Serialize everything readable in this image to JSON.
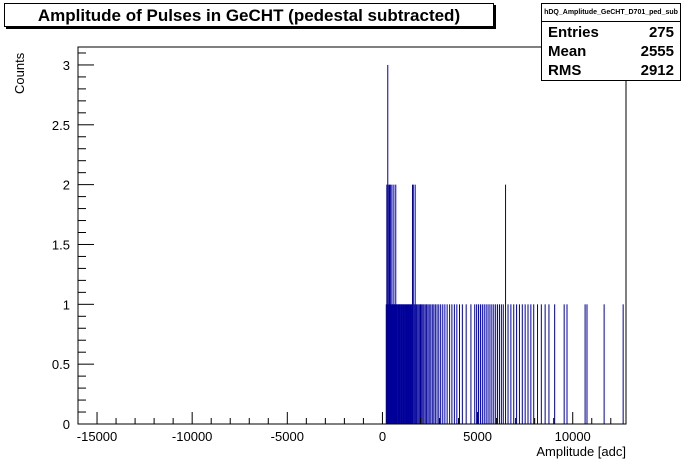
{
  "stats": {
    "name": "hDQ_Amplitude_GeCHT_D701_ped_sub",
    "rows": [
      {
        "label": "Entries",
        "value": "275"
      },
      {
        "label": "Mean",
        "value": "2555"
      },
      {
        "label": "RMS",
        "value": "2912"
      }
    ]
  },
  "chart_data": {
    "type": "bar",
    "title": "Amplitude of Pulses in GeCHT (pedestal subtracted)",
    "xlabel": "Amplitude [adc]",
    "ylabel": "Counts",
    "xlim": [
      -16000,
      12800
    ],
    "ylim": [
      0,
      3.15
    ],
    "xticks": [
      {
        "value": -15000,
        "label": "-15000"
      },
      {
        "value": -10000,
        "label": "-10000"
      },
      {
        "value": -5000,
        "label": "-5000"
      },
      {
        "value": 0,
        "label": "0"
      },
      {
        "value": 5000,
        "label": "5000"
      },
      {
        "value": 10000,
        "label": "10000"
      }
    ],
    "yticks": [
      {
        "value": 0,
        "label": "0"
      },
      {
        "value": 0.5,
        "label": "0.5"
      },
      {
        "value": 1,
        "label": "1"
      },
      {
        "value": 1.5,
        "label": "1.5"
      },
      {
        "value": 2,
        "label": "2"
      },
      {
        "value": 2.5,
        "label": "2.5"
      },
      {
        "value": 3,
        "label": "3"
      }
    ],
    "bar_color": "#000099",
    "bar_width": 20,
    "series": [
      {
        "bins": [
          {
            "x": 200,
            "y": 1
          },
          {
            "x": 230,
            "y": 2
          },
          {
            "x": 260,
            "y": 1
          },
          {
            "x": 280,
            "y": 3
          },
          {
            "x": 310,
            "y": 2
          },
          {
            "x": 340,
            "y": 1
          },
          {
            "x": 370,
            "y": 2
          },
          {
            "x": 400,
            "y": 1
          },
          {
            "x": 430,
            "y": 2
          },
          {
            "x": 460,
            "y": 1
          },
          {
            "x": 500,
            "y": 2
          },
          {
            "x": 530,
            "y": 1
          },
          {
            "x": 560,
            "y": 1
          },
          {
            "x": 600,
            "y": 2
          },
          {
            "x": 630,
            "y": 1
          },
          {
            "x": 660,
            "y": 1
          },
          {
            "x": 700,
            "y": 2
          },
          {
            "x": 730,
            "y": 1
          },
          {
            "x": 760,
            "y": 1
          },
          {
            "x": 800,
            "y": 1
          },
          {
            "x": 840,
            "y": 1
          },
          {
            "x": 870,
            "y": 1
          },
          {
            "x": 900,
            "y": 1
          },
          {
            "x": 940,
            "y": 1
          },
          {
            "x": 980,
            "y": 1
          },
          {
            "x": 1020,
            "y": 1
          },
          {
            "x": 1050,
            "y": 1
          },
          {
            "x": 1090,
            "y": 1
          },
          {
            "x": 1130,
            "y": 1
          },
          {
            "x": 1170,
            "y": 1
          },
          {
            "x": 1210,
            "y": 1
          },
          {
            "x": 1250,
            "y": 1
          },
          {
            "x": 1290,
            "y": 1
          },
          {
            "x": 1330,
            "y": 1
          },
          {
            "x": 1370,
            "y": 1
          },
          {
            "x": 1410,
            "y": 1
          },
          {
            "x": 1450,
            "y": 1
          },
          {
            "x": 1490,
            "y": 1
          },
          {
            "x": 1530,
            "y": 1
          },
          {
            "x": 1580,
            "y": 2
          },
          {
            "x": 1620,
            "y": 2
          },
          {
            "x": 1670,
            "y": 1
          },
          {
            "x": 1720,
            "y": 2
          },
          {
            "x": 1770,
            "y": 1
          },
          {
            "x": 1820,
            "y": 1
          },
          {
            "x": 1880,
            "y": 1
          },
          {
            "x": 1940,
            "y": 1
          },
          {
            "x": 2000,
            "y": 1
          },
          {
            "x": 2060,
            "y": 1
          },
          {
            "x": 2120,
            "y": 1
          },
          {
            "x": 2180,
            "y": 1
          },
          {
            "x": 2250,
            "y": 1
          },
          {
            "x": 2320,
            "y": 1
          },
          {
            "x": 2390,
            "y": 1
          },
          {
            "x": 2460,
            "y": 1
          },
          {
            "x": 2540,
            "y": 1
          },
          {
            "x": 2620,
            "y": 1
          },
          {
            "x": 2700,
            "y": 1
          },
          {
            "x": 2780,
            "y": 1
          },
          {
            "x": 2870,
            "y": 1
          },
          {
            "x": 2960,
            "y": 1
          },
          {
            "x": 3060,
            "y": 1
          },
          {
            "x": 3170,
            "y": 1
          },
          {
            "x": 3280,
            "y": 1
          },
          {
            "x": 3400,
            "y": 1
          },
          {
            "x": 3530,
            "y": 1
          },
          {
            "x": 3650,
            "y": 1
          },
          {
            "x": 3780,
            "y": 1
          },
          {
            "x": 3910,
            "y": 1
          },
          {
            "x": 4050,
            "y": 1
          },
          {
            "x": 4200,
            "y": 1
          },
          {
            "x": 4400,
            "y": 1
          },
          {
            "x": 4650,
            "y": 1
          },
          {
            "x": 4850,
            "y": 1
          },
          {
            "x": 4950,
            "y": 1
          },
          {
            "x": 5050,
            "y": 1
          },
          {
            "x": 5150,
            "y": 1
          },
          {
            "x": 5250,
            "y": 1
          },
          {
            "x": 5350,
            "y": 1
          },
          {
            "x": 5450,
            "y": 1
          },
          {
            "x": 5550,
            "y": 1
          },
          {
            "x": 5650,
            "y": 1
          },
          {
            "x": 5750,
            "y": 1
          },
          {
            "x": 5850,
            "y": 1
          },
          {
            "x": 5950,
            "y": 1
          },
          {
            "x": 6050,
            "y": 1
          },
          {
            "x": 6150,
            "y": 1
          },
          {
            "x": 6250,
            "y": 1
          },
          {
            "x": 6350,
            "y": 1
          },
          {
            "x": 6470,
            "y": 2
          },
          {
            "x": 6600,
            "y": 1
          },
          {
            "x": 6750,
            "y": 1
          },
          {
            "x": 6900,
            "y": 1
          },
          {
            "x": 7050,
            "y": 1
          },
          {
            "x": 7200,
            "y": 1
          },
          {
            "x": 7350,
            "y": 1
          },
          {
            "x": 7500,
            "y": 1
          },
          {
            "x": 7650,
            "y": 1
          },
          {
            "x": 7800,
            "y": 1
          },
          {
            "x": 7950,
            "y": 1
          },
          {
            "x": 8150,
            "y": 1
          },
          {
            "x": 8350,
            "y": 1
          },
          {
            "x": 8550,
            "y": 1
          },
          {
            "x": 8750,
            "y": 1
          },
          {
            "x": 9050,
            "y": 1
          },
          {
            "x": 9550,
            "y": 1
          },
          {
            "x": 9700,
            "y": 1
          },
          {
            "x": 10650,
            "y": 1
          },
          {
            "x": 10750,
            "y": 1
          },
          {
            "x": 11650,
            "y": 1
          },
          {
            "x": 12650,
            "y": 1
          }
        ]
      }
    ]
  }
}
